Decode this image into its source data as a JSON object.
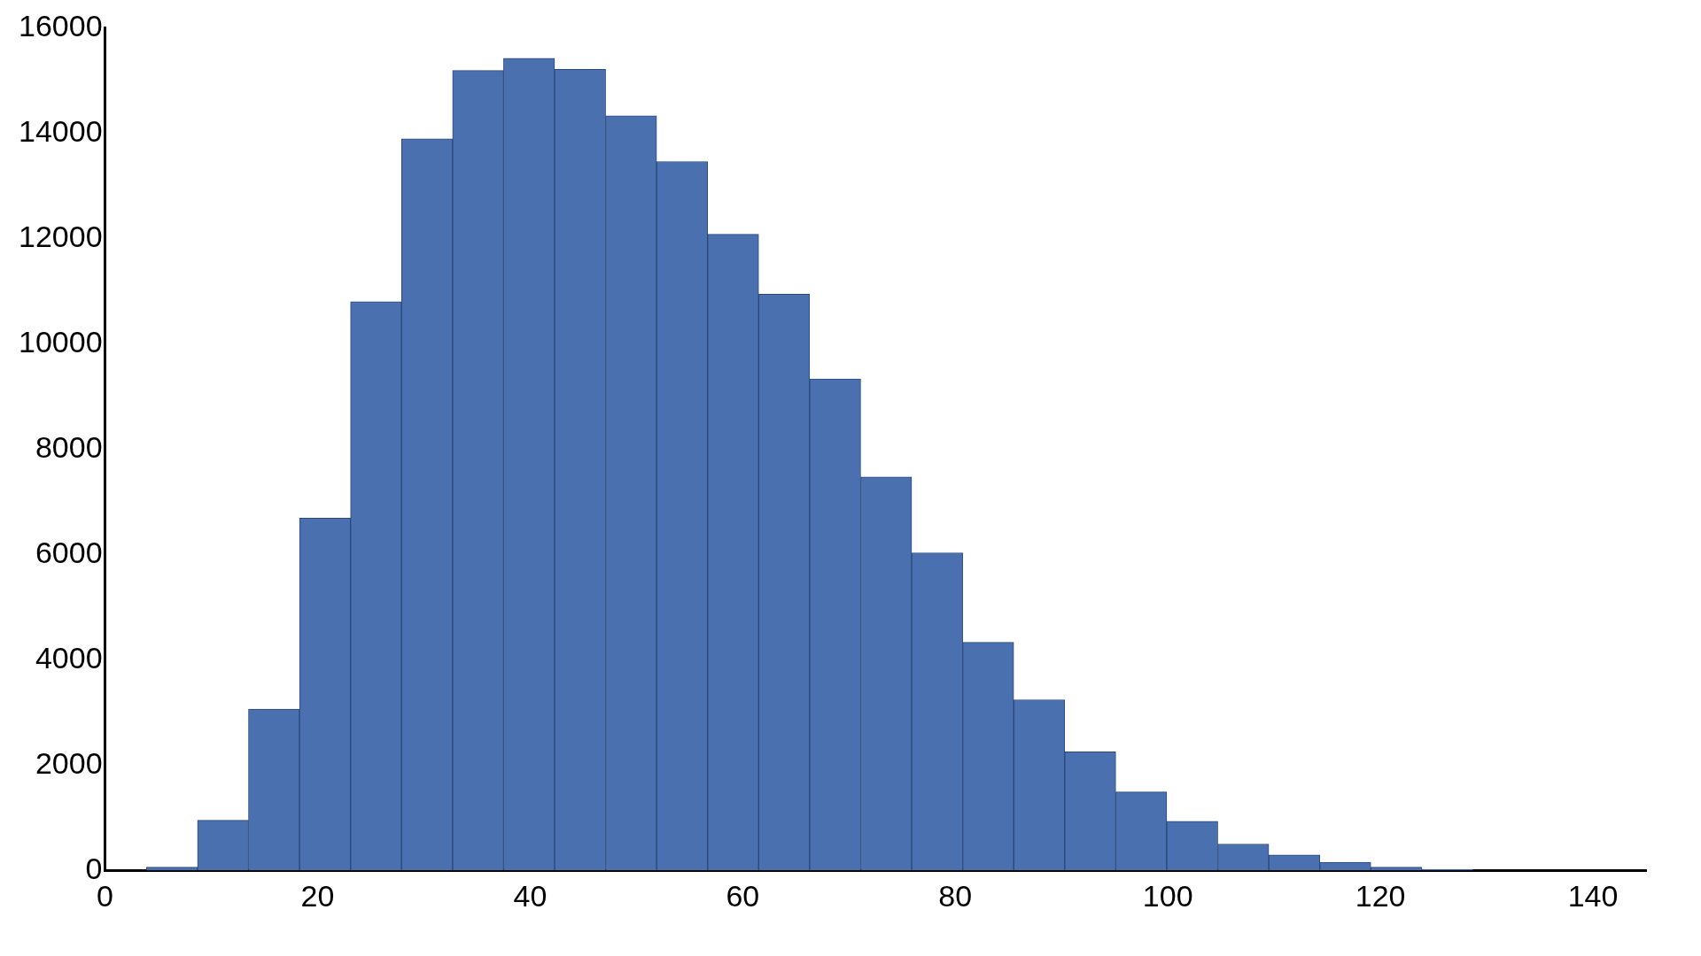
{
  "chart_data": {
    "type": "histogram",
    "bins": [
      3.9,
      8.7,
      13.5,
      18.3,
      23.1,
      27.9,
      32.7,
      37.5,
      42.3,
      47.1,
      51.9,
      56.7,
      61.5,
      66.3,
      71.1,
      75.9,
      80.7,
      85.5,
      90.3,
      95.1,
      99.9,
      104.7,
      109.5,
      114.3,
      119.1,
      123.9,
      128.7
    ],
    "values": [
      60,
      950,
      3060,
      6690,
      10800,
      13890,
      15190,
      15420,
      15210,
      14330,
      13460,
      12080,
      10940,
      9330,
      7470,
      6030,
      4330,
      3240,
      2250,
      1490,
      930,
      500,
      290,
      155,
      60,
      20
    ],
    "color": "#4a70b0",
    "xlim": [
      0,
      145
    ],
    "xticks": [
      0,
      20,
      40,
      60,
      80,
      100,
      120,
      140
    ],
    "ylim": [
      0,
      16000
    ],
    "yticks": [
      0,
      2000,
      4000,
      6000,
      8000,
      10000,
      12000,
      14000,
      16000
    ],
    "grid": false,
    "legend": false
  }
}
